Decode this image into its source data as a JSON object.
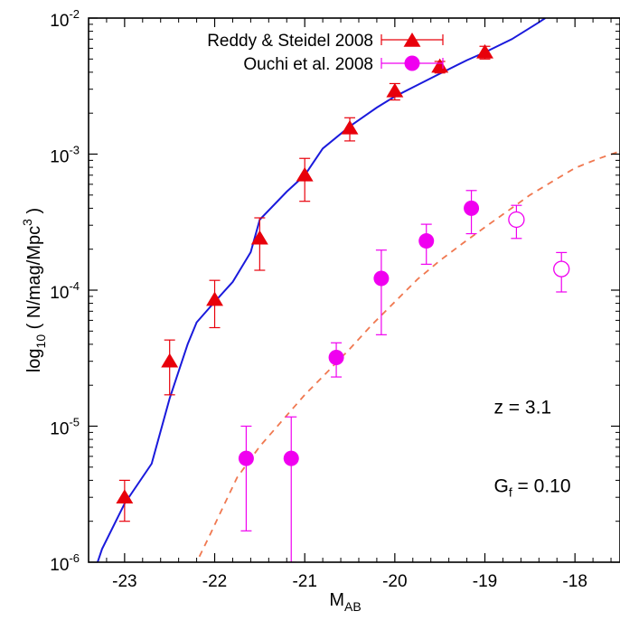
{
  "chart_data": {
    "type": "scatter",
    "title": "",
    "xlabel": {
      "main": "M",
      "sub": "AB"
    },
    "ylabel": {
      "prefix": "log",
      "prefix_sub": "10",
      "body": " ( N/mag/Mpc",
      "sup": "3",
      "suffix": " )"
    },
    "xlim": [
      -23.4,
      -17.5
    ],
    "ylim": [
      1e-06,
      0.01
    ],
    "yscale": "log",
    "x_ticks": [
      {
        "value": -23,
        "label": "-23"
      },
      {
        "value": -22,
        "label": "-22"
      },
      {
        "value": -21,
        "label": "-21"
      },
      {
        "value": -20,
        "label": "-20"
      },
      {
        "value": -19,
        "label": "-19"
      },
      {
        "value": -18,
        "label": "-18"
      }
    ],
    "y_ticks": [
      {
        "value": 1e-06,
        "base": "10",
        "exp": "-6"
      },
      {
        "value": 1e-05,
        "base": "10",
        "exp": "-5"
      },
      {
        "value": 0.0001,
        "base": "10",
        "exp": "-4"
      },
      {
        "value": 0.001,
        "base": "10",
        "exp": "-3"
      },
      {
        "value": 0.01,
        "base": "10",
        "exp": "-2"
      }
    ],
    "grid": false,
    "legend_position": "top-left",
    "series": [
      {
        "name": "Reddy & Steidel 2008",
        "kind": "points",
        "marker": "triangle",
        "color": "#e8000b",
        "points": [
          {
            "x": -23.0,
            "y": 3e-06,
            "lo": 2e-06,
            "hi": 4e-06
          },
          {
            "x": -22.5,
            "y": 3e-05,
            "lo": 1.7e-05,
            "hi": 4.3e-05
          },
          {
            "x": -22.0,
            "y": 8.5e-05,
            "lo": 5.3e-05,
            "hi": 0.000118
          },
          {
            "x": -21.5,
            "y": 0.00024,
            "lo": 0.00014,
            "hi": 0.00034
          },
          {
            "x": -21.0,
            "y": 0.0007,
            "lo": 0.00045,
            "hi": 0.00093
          },
          {
            "x": -20.5,
            "y": 0.00155,
            "lo": 0.00125,
            "hi": 0.00185
          },
          {
            "x": -20.0,
            "y": 0.0029,
            "lo": 0.0025,
            "hi": 0.0033
          },
          {
            "x": -19.5,
            "y": 0.0044,
            "lo": 0.00395,
            "hi": 0.0048
          },
          {
            "x": -19.0,
            "y": 0.0056,
            "lo": 0.005,
            "hi": 0.0062
          }
        ]
      },
      {
        "name": "Ouchi et al. 2008",
        "kind": "points",
        "marker": "circle",
        "color": "#f000f0",
        "points": [
          {
            "x": -21.65,
            "y": 5.8e-06,
            "lo": 1.7e-06,
            "hi": 1e-05,
            "open": false
          },
          {
            "x": -21.15,
            "y": 5.8e-06,
            "lo": 1e-06,
            "hi": 1.17e-05,
            "open": false
          },
          {
            "x": -20.65,
            "y": 3.2e-05,
            "lo": 2.3e-05,
            "hi": 4.1e-05,
            "open": false
          },
          {
            "x": -20.15,
            "y": 0.000122,
            "lo": 4.7e-05,
            "hi": 0.000197,
            "open": false
          },
          {
            "x": -19.65,
            "y": 0.00023,
            "lo": 0.000155,
            "hi": 0.000305,
            "open": false
          },
          {
            "x": -19.15,
            "y": 0.0004,
            "lo": 0.00026,
            "hi": 0.00054,
            "open": false
          },
          {
            "x": -18.65,
            "y": 0.00033,
            "lo": 0.00024,
            "hi": 0.00042,
            "open": true
          },
          {
            "x": -18.15,
            "y": 0.000143,
            "lo": 9.7e-05,
            "hi": 0.000189,
            "open": true
          }
        ]
      },
      {
        "kind": "line",
        "style": "solid",
        "color": "#1a1adc",
        "points": [
          [
            -23.3,
            1e-06
          ],
          [
            -23.25,
            1.25e-06
          ],
          [
            -23.0,
            2.7e-06
          ],
          [
            -22.7,
            5.3e-06
          ],
          [
            -22.5,
            1.6e-05
          ],
          [
            -22.3,
            4e-05
          ],
          [
            -22.2,
            5.8e-05
          ],
          [
            -22.0,
            8.2e-05
          ],
          [
            -21.8,
            0.000115
          ],
          [
            -21.6,
            0.00019
          ],
          [
            -21.5,
            0.00033
          ],
          [
            -21.2,
            0.00053
          ],
          [
            -21.0,
            0.0007
          ],
          [
            -20.8,
            0.0011
          ],
          [
            -20.5,
            0.0016
          ],
          [
            -20.2,
            0.0022
          ],
          [
            -20.0,
            0.00265
          ],
          [
            -19.8,
            0.0031
          ],
          [
            -19.5,
            0.0039
          ],
          [
            -19.2,
            0.0049
          ],
          [
            -19.0,
            0.0056
          ],
          [
            -18.7,
            0.007
          ],
          [
            -18.4,
            0.0093
          ],
          [
            -18.33,
            0.01
          ]
        ]
      },
      {
        "kind": "line",
        "style": "dashed",
        "color": "#f07850",
        "points": [
          [
            -22.17,
            1.1e-06
          ],
          [
            -22.05,
            1.6e-06
          ],
          [
            -21.9,
            2.6e-06
          ],
          [
            -21.75,
            4.2e-06
          ],
          [
            -21.5,
            7.1e-06
          ],
          [
            -21.25,
            1.1e-05
          ],
          [
            -21.0,
            1.7e-05
          ],
          [
            -20.75,
            2.5e-05
          ],
          [
            -20.5,
            3.7e-05
          ],
          [
            -20.25,
            5.6e-05
          ],
          [
            -20.0,
            8.2e-05
          ],
          [
            -19.75,
            0.00012
          ],
          [
            -19.5,
            0.000165
          ],
          [
            -19.25,
            0.00022
          ],
          [
            -19.0,
            0.00029
          ],
          [
            -18.75,
            0.00038
          ],
          [
            -18.5,
            0.0005
          ],
          [
            -18.25,
            0.00063
          ],
          [
            -18.0,
            0.00079
          ],
          [
            -17.75,
            0.00092
          ],
          [
            -17.5,
            0.00105
          ]
        ]
      }
    ],
    "annotations": [
      {
        "text": "z = 3.1",
        "x": -18.9,
        "y": 1e-05
      },
      {
        "main": "G",
        "sub": "f",
        "rest": " = 0.10",
        "x": -18.9,
        "y": 3.7e-06
      }
    ]
  }
}
